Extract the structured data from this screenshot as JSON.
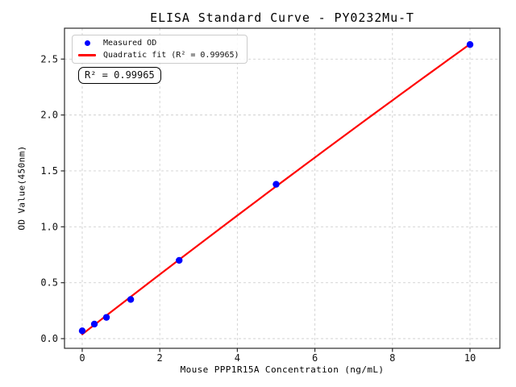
{
  "figure": {
    "annotation": "R² = 0.99965"
  },
  "legend": {
    "position": "upper left",
    "items": [
      {
        "label": "Measured OD",
        "marker": "dot",
        "color": "#0000ff"
      },
      {
        "label": "Quadratic fit (R² = 0.99965)",
        "marker": "line",
        "color": "#ff0000"
      }
    ]
  },
  "chart_data": {
    "type": "scatter",
    "title": "ELISA Standard Curve - PY0232Mu-T",
    "xlabel": "Mouse PPP1R15A Concentration (ng/mL)",
    "ylabel": "OD Value(450nm)",
    "xlim": [
      -0.457,
      10.77
    ],
    "ylim": [
      -0.0865,
      2.776
    ],
    "x_ticks": [
      0,
      2,
      4,
      6,
      8,
      10
    ],
    "x_tick_labels": [
      "0",
      "2",
      "4",
      "6",
      "8",
      "10"
    ],
    "y_ticks": [
      0.0,
      0.5,
      1.0,
      1.5,
      2.0,
      2.5
    ],
    "y_tick_labels": [
      "0.0",
      "0.5",
      "1.0",
      "1.5",
      "2.0",
      "2.5"
    ],
    "grid": true,
    "grid_style": "dashed",
    "grid_color": "#d0d0d0",
    "series": [
      {
        "name": "Measured OD",
        "type": "scatter",
        "color": "#0000ff",
        "x": [
          0,
          0.313,
          0.625,
          1.25,
          2.5,
          5,
          10
        ],
        "y": [
          0.07,
          0.13,
          0.19,
          0.35,
          0.7,
          1.38,
          2.63
        ]
      },
      {
        "name": "Quadratic fit (R² = 0.99965)",
        "type": "line",
        "color": "#ff0000",
        "fit": {
          "kind": "quadratic",
          "coefficients": {
            "a": -0.001,
            "b": 0.2695,
            "c": 0.039
          },
          "r_squared": 0.99965,
          "x_range": [
            0,
            10
          ]
        }
      }
    ]
  }
}
